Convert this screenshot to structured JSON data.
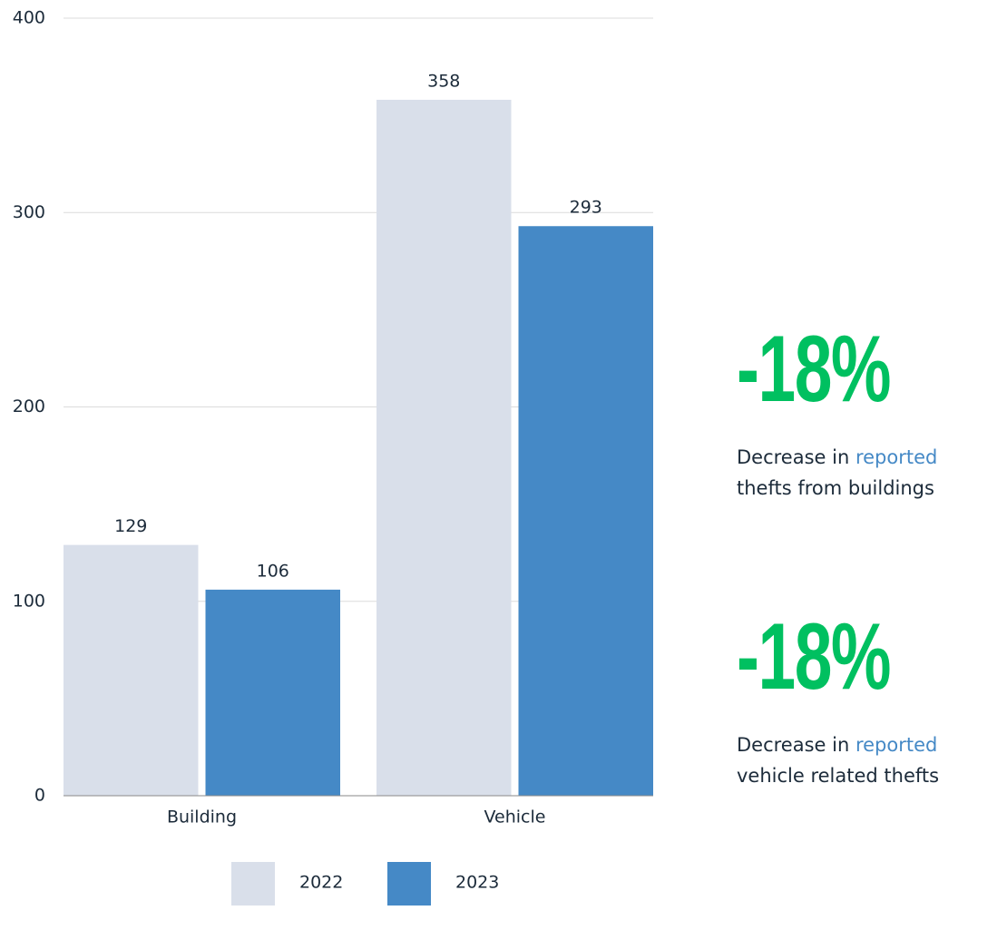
{
  "chart_data": {
    "type": "bar",
    "categories": [
      "Building",
      "Vehicle"
    ],
    "series": [
      {
        "name": "2022",
        "color": "#d9dfea",
        "values": [
          129,
          358
        ]
      },
      {
        "name": "2023",
        "color": "#4589c6",
        "values": [
          106,
          293
        ]
      }
    ],
    "ylim": [
      0,
      400
    ],
    "yticks": [
      0,
      100,
      200,
      300,
      400
    ],
    "grid": true,
    "legend": "bottom"
  },
  "stats": [
    {
      "value": "-18%",
      "before": "Decrease in",
      "highlight": "reported",
      "after": "thefts from buildings"
    },
    {
      "value": "-18%",
      "before": "Decrease in",
      "highlight": "reported",
      "after": "vehicle related thefts"
    }
  ]
}
